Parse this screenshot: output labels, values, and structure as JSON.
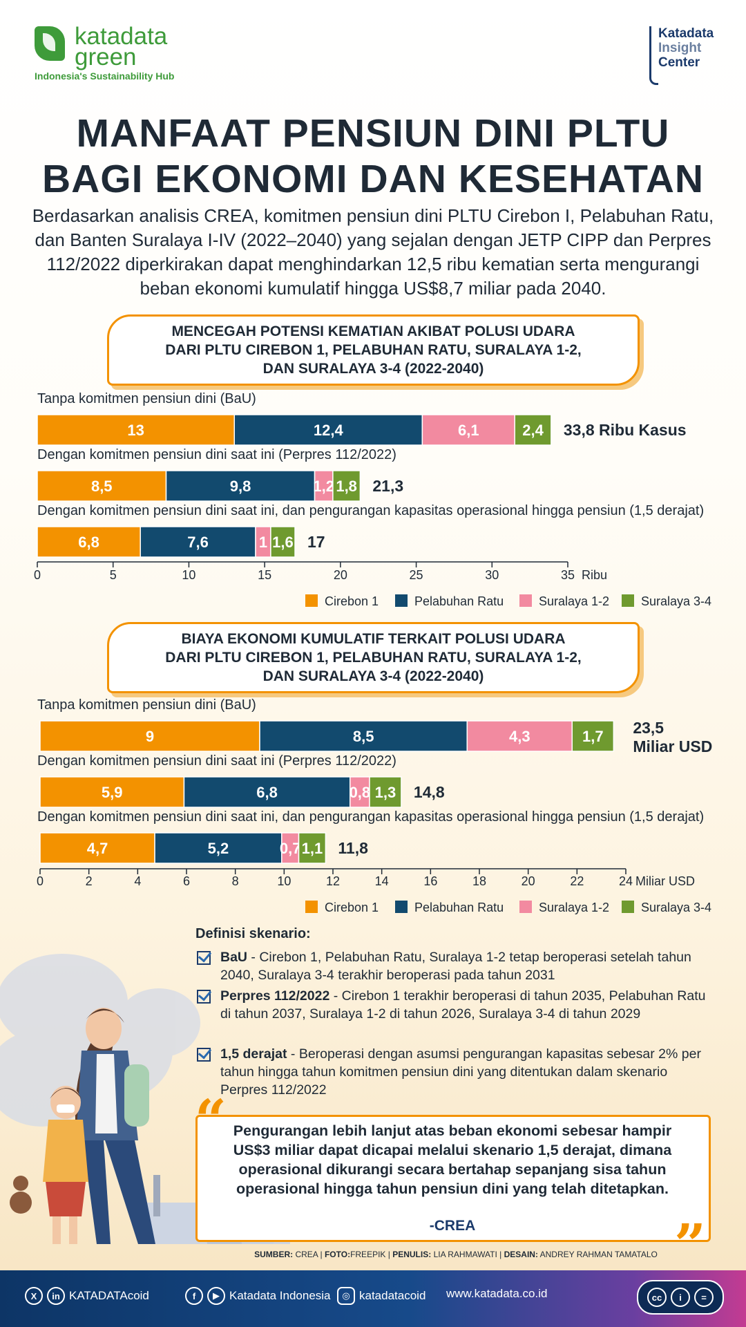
{
  "header": {
    "brand_name": "katadata green",
    "brand_tagline": "Indonesia's Sustainability Hub",
    "partner_logo": [
      "Katadata",
      "Insight",
      "Center"
    ]
  },
  "title_line1": "MANFAAT PENSIUN DINI PLTU",
  "title_line2": "BAGI EKONOMI DAN KESEHATAN",
  "intro": "Berdasarkan analisis CREA, komitmen pensiun dini PLTU Cirebon I, Pelabuhan Ratu, dan Banten Suralaya I-IV (2022–2040) yang sejalan dengan JETP CIPP dan Perpres 112/2022 diperkirakan dapat menghindarkan 12,5 ribu kematian serta mengurangi beban ekonomi kumulatif hingga US$8,7 miliar pada 2040.",
  "colors": {
    "cirebon": "#f39200",
    "pelabuhan": "#124a6e",
    "suralaya12": "#f28aa0",
    "suralaya34": "#6f9a2f",
    "accent": "#f39200"
  },
  "chart_data": [
    {
      "type": "bar",
      "orientation": "horizontal-stacked",
      "title_lines": [
        "MENCEGAH POTENSI KEMATIAN AKIBAT POLUSI UDARA",
        "DARI PLTU CIREBON 1, PELABUHAN RATU, SURALAYA 1-2,",
        "DAN SURALAYA 3-4 (2022-2040)"
      ],
      "categories": [
        "Tanpa komitmen pensiun dini (BaU)",
        "Dengan komitmen pensiun dini saat ini (Perpres 112/2022)",
        "Dengan komitmen pensiun dini saat ini, dan pengurangan kapasitas operasional hingga pensiun (1,5 derajat)"
      ],
      "series": [
        {
          "name": "Cirebon 1",
          "values": [
            13,
            8.5,
            6.8
          ],
          "labels": [
            "13",
            "8,5",
            "6,8"
          ],
          "color": "#f39200"
        },
        {
          "name": "Pelabuhan Ratu",
          "values": [
            12.4,
            9.8,
            7.6
          ],
          "labels": [
            "12,4",
            "9,8",
            "7,6"
          ],
          "color": "#124a6e"
        },
        {
          "name": "Suralaya 1-2",
          "values": [
            6.1,
            1.2,
            1
          ],
          "labels": [
            "6,1",
            "1,2",
            "1"
          ],
          "color": "#f28aa0"
        },
        {
          "name": "Suralaya 3-4",
          "values": [
            2.4,
            1.8,
            1.6
          ],
          "labels": [
            "2,4",
            "1,8",
            "1,6"
          ],
          "color": "#6f9a2f"
        }
      ],
      "totals": [
        "33,8 Ribu Kasus",
        "21,3",
        "17"
      ],
      "xlim": [
        0,
        35
      ],
      "xticks": [
        0,
        5,
        10,
        15,
        20,
        25,
        30,
        35
      ],
      "xtick_labels": [
        "0",
        "5",
        "10",
        "15",
        "20",
        "25",
        "30",
        "35"
      ],
      "xunit": "Ribu",
      "legend_position": "bottom-right"
    },
    {
      "type": "bar",
      "orientation": "horizontal-stacked",
      "title_lines": [
        "BIAYA EKONOMI KUMULATIF TERKAIT POLUSI UDARA",
        "DARI PLTU CIREBON 1, PELABUHAN RATU, SURALAYA 1-2,",
        "DAN SURALAYA 3-4 (2022-2040)"
      ],
      "categories": [
        "Tanpa komitmen pensiun dini (BaU)",
        "Dengan komitmen pensiun dini saat ini (Perpres 112/2022)",
        "Dengan komitmen pensiun dini saat ini, dan pengurangan kapasitas operasional hingga pensiun (1,5 derajat)"
      ],
      "series": [
        {
          "name": "Cirebon 1",
          "values": [
            9,
            5.9,
            4.7
          ],
          "labels": [
            "9",
            "5,9",
            "4,7"
          ],
          "color": "#f39200"
        },
        {
          "name": "Pelabuhan Ratu",
          "values": [
            8.5,
            6.8,
            5.2
          ],
          "labels": [
            "8,5",
            "6,8",
            "5,2"
          ],
          "color": "#124a6e"
        },
        {
          "name": "Suralaya 1-2",
          "values": [
            4.3,
            0.8,
            0.7
          ],
          "labels": [
            "4,3",
            "0,8",
            "0,7"
          ],
          "color": "#f28aa0"
        },
        {
          "name": "Suralaya 3-4",
          "values": [
            1.7,
            1.3,
            1.1
          ],
          "labels": [
            "1,7",
            "1,3",
            "1,1"
          ],
          "color": "#6f9a2f"
        }
      ],
      "totals": [
        "23,5 Miliar USD",
        "14,8",
        "11,8"
      ],
      "xlim": [
        0,
        24
      ],
      "xticks": [
        0,
        2,
        4,
        6,
        8,
        10,
        12,
        14,
        16,
        18,
        20,
        22,
        24
      ],
      "xtick_labels": [
        "0",
        "2",
        "4",
        "6",
        "8",
        "10",
        "12",
        "14",
        "16",
        "18",
        "20",
        "22",
        "24"
      ],
      "xunit": "Miliar USD",
      "legend_position": "bottom-right"
    }
  ],
  "definitions": {
    "title": "Definisi skenario:",
    "items": [
      {
        "term": "BaU",
        "text": " - Cirebon 1, Pelabuhan Ratu, Suralaya 1-2 tetap beroperasi setelah tahun 2040, Suralaya 3-4 terakhir beroperasi pada tahun 2031"
      },
      {
        "term": "Perpres 112/2022",
        "text": " - Cirebon 1 terakhir beroperasi di tahun 2035, Pelabuhan Ratu di tahun 2037, Suralaya 1-2 di tahun 2026, Suralaya 3-4 di tahun 2029"
      },
      {
        "term": "1,5 derajat",
        "text": " - Beroperasi dengan asumsi pengurangan kapasitas sebesar 2% per tahun hingga tahun komitmen pensiun dini yang ditentukan dalam skenario Perpres 112/2022"
      }
    ]
  },
  "quote": {
    "text": "Pengurangan lebih lanjut atas beban ekonomi sebesar hampir US$3 miliar dapat dicapai melalui skenario 1,5 derajat, dimana operasional dikurangi secara bertahap sepanjang sisa tahun operasional hingga tahun pensiun dini yang telah ditetapkan.",
    "source": "-CREA"
  },
  "source_line": {
    "sumber_label": "SUMBER:",
    "sumber": "CREA",
    "foto_label": "FOTO:",
    "foto": "FREEPIK",
    "penulis_label": "PENULIS:",
    "penulis": "LIA RAHMAWATI",
    "desain_label": "DESAIN:",
    "desain": "ANDREY RAHMAN TAMATALO"
  },
  "footer": {
    "handle1": "KATADATAcoid",
    "handle2": "Katadata Indonesia",
    "handle3": "katadatacoid",
    "website": "www.katadata.co.id",
    "icons": [
      "x-icon",
      "linkedin-icon",
      "facebook-icon",
      "youtube-icon",
      "instagram-icon"
    ]
  }
}
